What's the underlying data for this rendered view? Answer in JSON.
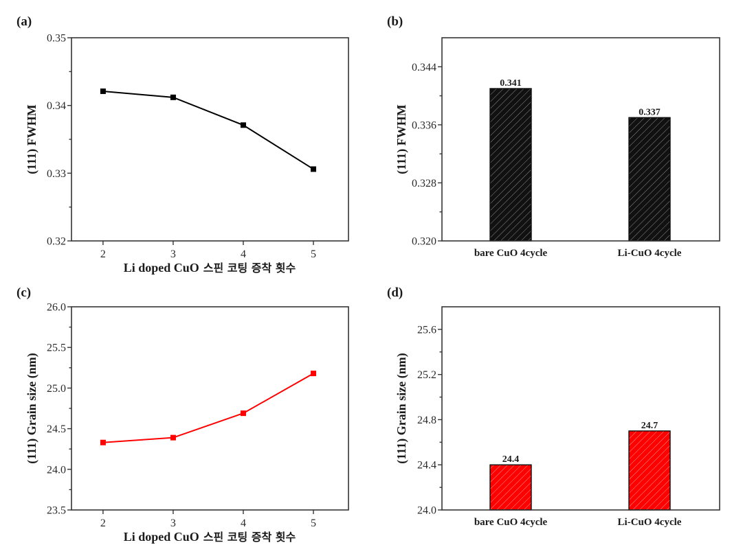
{
  "figure": {
    "panels": [
      "(a)",
      "(b)",
      "(c)",
      "(d)"
    ]
  },
  "chart_data": [
    {
      "id": "a",
      "panel_label": "(a)",
      "type": "line",
      "title": "",
      "xlabel": "Li doped CuO 스핀 코팅 증착 횟수",
      "xlabel_latin": "Li doped CuO",
      "xlabel_korean": "스핀 코팅 증착 횟수",
      "ylabel": "(111) FWHM",
      "x": [
        2,
        3,
        4,
        5
      ],
      "xticks": [
        "2",
        "3",
        "4",
        "5"
      ],
      "xlim": [
        1.55,
        5.5
      ],
      "ylim": [
        0.32,
        0.35
      ],
      "yticks": [
        "0.32",
        "0.33",
        "0.34",
        "0.35"
      ],
      "ytick_values": [
        0.32,
        0.33,
        0.34,
        0.35
      ],
      "yminor": [
        0.325,
        0.335,
        0.345
      ],
      "series": [
        {
          "name": "FWHM",
          "color": "#000000",
          "marker": "square",
          "values": [
            0.3421,
            0.3412,
            0.3371,
            0.3306
          ]
        }
      ],
      "grid": false,
      "legend": "none"
    },
    {
      "id": "b",
      "panel_label": "(b)",
      "type": "bar",
      "title": "",
      "xlabel": "",
      "ylabel": "(111) FWHM",
      "categories": [
        "bare CuO 4cycle",
        "Li-CuO 4cycle"
      ],
      "values": [
        0.341,
        0.337
      ],
      "value_labels": [
        "0.341",
        "0.337"
      ],
      "bar_color": "#111111",
      "hatch_color": "#8a8a8a",
      "ylim": [
        0.32,
        0.348
      ],
      "yticks": [
        "0.320",
        "0.328",
        "0.336",
        "0.344"
      ],
      "ytick_values": [
        0.32,
        0.328,
        0.336,
        0.344
      ],
      "yminor": [
        0.324,
        0.332,
        0.34
      ],
      "grid": false,
      "legend": "none"
    },
    {
      "id": "c",
      "panel_label": "(c)",
      "type": "line",
      "title": "",
      "xlabel": "Li doped CuO 스핀 코팅 증착 횟수",
      "xlabel_latin": "Li doped CuO",
      "xlabel_korean": "스핀 코팅 증착 횟수",
      "ylabel": "(111) Grain size (nm)",
      "x": [
        2,
        3,
        4,
        5
      ],
      "xticks": [
        "2",
        "3",
        "4",
        "5"
      ],
      "xlim": [
        1.55,
        5.5
      ],
      "ylim": [
        23.5,
        26.0
      ],
      "yticks": [
        "23.5",
        "24.0",
        "24.5",
        "25.0",
        "25.5",
        "26.0"
      ],
      "ytick_values": [
        23.5,
        24.0,
        24.5,
        25.0,
        25.5,
        26.0
      ],
      "yminor": [
        23.75,
        24.25,
        24.75,
        25.25,
        25.75
      ],
      "series": [
        {
          "name": "Grain size",
          "color": "#ff0000",
          "marker": "square",
          "values": [
            24.33,
            24.39,
            24.69,
            25.18
          ]
        }
      ],
      "grid": false,
      "legend": "none"
    },
    {
      "id": "d",
      "panel_label": "(d)",
      "type": "bar",
      "title": "",
      "xlabel": "",
      "ylabel": "(111) Grain size (nm)",
      "categories": [
        "bare CuO 4cycle",
        "Li-CuO 4cycle"
      ],
      "values": [
        24.4,
        24.7
      ],
      "value_labels": [
        "24.4",
        "24.7"
      ],
      "bar_color": "#ff0000",
      "hatch_color": "#ff9a9a",
      "ylim": [
        24.0,
        25.8
      ],
      "yticks": [
        "24.0",
        "24.4",
        "24.8",
        "25.2",
        "25.6"
      ],
      "ytick_values": [
        24.0,
        24.4,
        24.8,
        25.2,
        25.6
      ],
      "yminor": [
        24.2,
        24.6,
        25.0,
        25.4
      ],
      "grid": false,
      "legend": "none"
    }
  ]
}
